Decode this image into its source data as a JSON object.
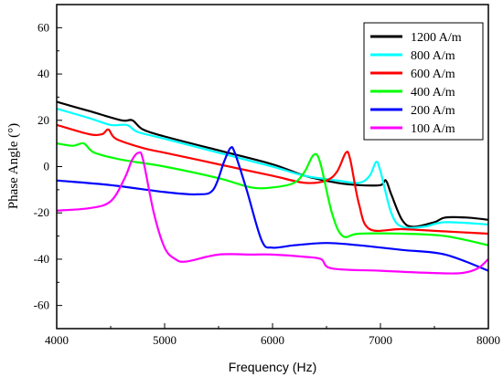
{
  "chart_data": {
    "type": "line",
    "xlabel": "Frequency (Hz)",
    "ylabel": "Phase Angle (°)",
    "xlim": [
      4000,
      8000
    ],
    "ylim": [
      -70,
      70
    ],
    "xticks": [
      4000,
      5000,
      6000,
      7000,
      8000
    ],
    "yticks": [
      -60,
      -40,
      -20,
      0,
      20,
      40,
      60
    ],
    "xtick_labels": [
      "4000",
      "5000",
      "6000",
      "7000",
      "8000"
    ],
    "ytick_labels": [
      "-60",
      "-40",
      "-20",
      "0",
      "20",
      "40",
      "60"
    ],
    "grid": false,
    "legend_position": "top-right",
    "series": [
      {
        "name": "1200 A/m",
        "color": "#000000",
        "points": [
          [
            4000,
            28
          ],
          [
            4300,
            24
          ],
          [
            4600,
            20
          ],
          [
            4700,
            20
          ],
          [
            4800,
            16
          ],
          [
            5000,
            13
          ],
          [
            5500,
            7
          ],
          [
            6000,
            1
          ],
          [
            6300,
            -4
          ],
          [
            6600,
            -7
          ],
          [
            6800,
            -8
          ],
          [
            7000,
            -8
          ],
          [
            7050,
            -6
          ],
          [
            7100,
            -12
          ],
          [
            7200,
            -23
          ],
          [
            7300,
            -26
          ],
          [
            7500,
            -24
          ],
          [
            7600,
            -22
          ],
          [
            7800,
            -22
          ],
          [
            8000,
            -23
          ]
        ]
      },
      {
        "name": "800 A/m",
        "color": "#00ffff",
        "points": [
          [
            4000,
            25
          ],
          [
            4300,
            21
          ],
          [
            4500,
            18
          ],
          [
            4650,
            18
          ],
          [
            4750,
            15
          ],
          [
            5000,
            12
          ],
          [
            5500,
            6
          ],
          [
            6000,
            0
          ],
          [
            6300,
            -4
          ],
          [
            6600,
            -6
          ],
          [
            6800,
            -7
          ],
          [
            6900,
            -4
          ],
          [
            6960,
            2
          ],
          [
            7000,
            -2
          ],
          [
            7100,
            -20
          ],
          [
            7200,
            -26
          ],
          [
            7400,
            -26
          ],
          [
            7600,
            -24
          ],
          [
            8000,
            -25
          ]
        ]
      },
      {
        "name": "600 A/m",
        "color": "#ff0000",
        "points": [
          [
            4000,
            18
          ],
          [
            4300,
            14
          ],
          [
            4420,
            14
          ],
          [
            4480,
            16
          ],
          [
            4550,
            12
          ],
          [
            4800,
            8
          ],
          [
            5000,
            6
          ],
          [
            5500,
            1
          ],
          [
            6000,
            -4
          ],
          [
            6300,
            -7
          ],
          [
            6500,
            -6
          ],
          [
            6600,
            -2
          ],
          [
            6680,
            6
          ],
          [
            6720,
            3
          ],
          [
            6800,
            -16
          ],
          [
            6900,
            -27
          ],
          [
            7200,
            -27
          ],
          [
            7600,
            -28
          ],
          [
            8000,
            -29
          ]
        ]
      },
      {
        "name": "400 A/m",
        "color": "#00ff00",
        "points": [
          [
            4000,
            10
          ],
          [
            4150,
            9
          ],
          [
            4250,
            10
          ],
          [
            4350,
            6
          ],
          [
            4600,
            3
          ],
          [
            5000,
            0
          ],
          [
            5500,
            -5
          ],
          [
            5800,
            -9
          ],
          [
            6000,
            -9
          ],
          [
            6200,
            -7
          ],
          [
            6300,
            -2
          ],
          [
            6380,
            5
          ],
          [
            6440,
            2
          ],
          [
            6550,
            -20
          ],
          [
            6650,
            -30
          ],
          [
            6800,
            -29
          ],
          [
            7200,
            -29
          ],
          [
            7600,
            -30
          ],
          [
            8000,
            -34
          ]
        ]
      },
      {
        "name": "200 A/m",
        "color": "#0000ff",
        "points": [
          [
            4000,
            -6
          ],
          [
            4500,
            -8
          ],
          [
            5000,
            -11
          ],
          [
            5300,
            -12
          ],
          [
            5450,
            -10
          ],
          [
            5550,
            2
          ],
          [
            5610,
            8
          ],
          [
            5650,
            6
          ],
          [
            5760,
            -10
          ],
          [
            5900,
            -32
          ],
          [
            6000,
            -35
          ],
          [
            6200,
            -34
          ],
          [
            6500,
            -33
          ],
          [
            6800,
            -34
          ],
          [
            7200,
            -36
          ],
          [
            7600,
            -38
          ],
          [
            8000,
            -45
          ]
        ]
      },
      {
        "name": "100 A/m",
        "color": "#ff00ff",
        "points": [
          [
            4000,
            -19
          ],
          [
            4300,
            -18
          ],
          [
            4500,
            -15
          ],
          [
            4630,
            -5
          ],
          [
            4700,
            3
          ],
          [
            4760,
            6
          ],
          [
            4800,
            3
          ],
          [
            4900,
            -20
          ],
          [
            5000,
            -35
          ],
          [
            5100,
            -40
          ],
          [
            5200,
            -41
          ],
          [
            5500,
            -38
          ],
          [
            5800,
            -38
          ],
          [
            6000,
            -38
          ],
          [
            6300,
            -39
          ],
          [
            6450,
            -40
          ],
          [
            6550,
            -44
          ],
          [
            7000,
            -45
          ],
          [
            7500,
            -46
          ],
          [
            7750,
            -46
          ],
          [
            7900,
            -44
          ],
          [
            8000,
            -40
          ]
        ]
      }
    ]
  }
}
